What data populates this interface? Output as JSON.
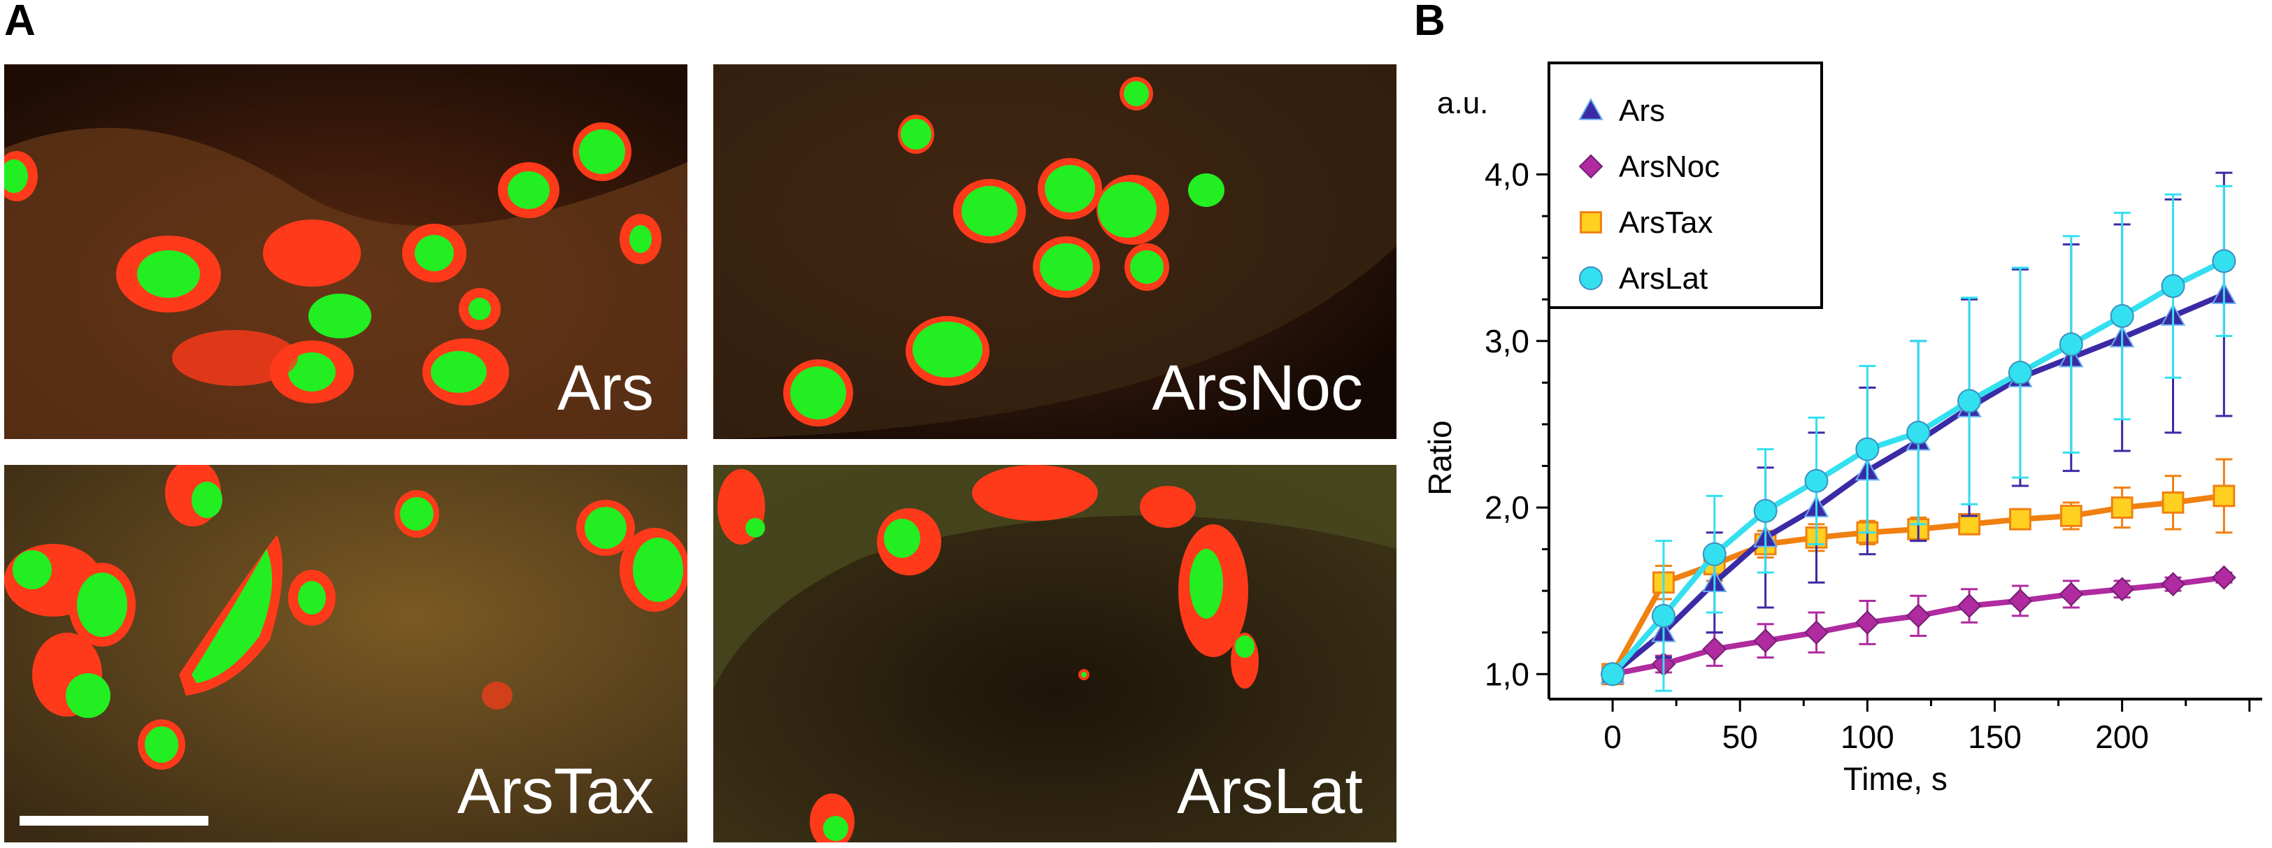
{
  "panels": {
    "a_label": "A",
    "b_label": "B",
    "images": [
      {
        "label": "Ars"
      },
      {
        "label": "ArsNoc"
      },
      {
        "label": "ArsTax"
      },
      {
        "label": "ArsLat"
      }
    ]
  },
  "colors": {
    "Ars": "#3b2aa6",
    "ArsNoc": "#b02aa0",
    "ArsTax": "#f08010",
    "ArsLat": "#33e0f0",
    "green_channel": "#22ee22",
    "red_channel": "#ff3a1a"
  },
  "chart_data": {
    "type": "line",
    "xlabel": "Time, s",
    "ylabel": "Ratio",
    "y_unit": "a.u.",
    "xlim": [
      -25,
      255
    ],
    "ylim": [
      0.85,
      4.25
    ],
    "x_ticks": [
      0,
      50,
      100,
      150,
      200
    ],
    "y_ticks": [
      1.0,
      2.0,
      3.0,
      4.0
    ],
    "y_tick_labels": [
      "1,0",
      "2,0",
      "3,0",
      "4,0"
    ],
    "legend": "top-left",
    "series": [
      {
        "name": "Ars",
        "marker": "triangle",
        "color": "#3b2aa6",
        "x": [
          0,
          20,
          40,
          60,
          80,
          100,
          120,
          140,
          160,
          180,
          200,
          220,
          240
        ],
        "y": [
          1.0,
          1.25,
          1.55,
          1.82,
          2.0,
          2.22,
          2.4,
          2.6,
          2.78,
          2.9,
          3.02,
          3.15,
          3.28
        ],
        "err": [
          0.02,
          0.15,
          0.3,
          0.42,
          0.45,
          0.5,
          0.6,
          0.65,
          0.65,
          0.68,
          0.68,
          0.7,
          0.73
        ]
      },
      {
        "name": "ArsNoc",
        "marker": "diamond",
        "color": "#b02aa0",
        "x": [
          0,
          20,
          40,
          60,
          80,
          100,
          120,
          140,
          160,
          180,
          200,
          220,
          240
        ],
        "y": [
          1.0,
          1.06,
          1.15,
          1.2,
          1.25,
          1.31,
          1.35,
          1.41,
          1.44,
          1.48,
          1.51,
          1.54,
          1.58
        ],
        "err": [
          0.02,
          0.05,
          0.1,
          0.1,
          0.12,
          0.13,
          0.12,
          0.1,
          0.09,
          0.08,
          0.05,
          0.04,
          0.03
        ]
      },
      {
        "name": "ArsTax",
        "marker": "square",
        "color": "#f08010",
        "x": [
          0,
          20,
          40,
          60,
          80,
          100,
          120,
          140,
          160,
          180,
          200,
          220,
          240
        ],
        "y": [
          1.0,
          1.55,
          1.66,
          1.78,
          1.82,
          1.85,
          1.87,
          1.9,
          1.93,
          1.95,
          2.0,
          2.03,
          2.07
        ],
        "err": [
          0.02,
          0.1,
          0.1,
          0.08,
          0.08,
          0.07,
          0.07,
          0.06,
          0.06,
          0.08,
          0.12,
          0.16,
          0.22
        ]
      },
      {
        "name": "ArsLat",
        "marker": "circle",
        "color": "#33e0f0",
        "x": [
          0,
          20,
          40,
          60,
          80,
          100,
          120,
          140,
          160,
          180,
          200,
          220,
          240
        ],
        "y": [
          1.0,
          1.35,
          1.72,
          1.98,
          2.16,
          2.35,
          2.45,
          2.64,
          2.81,
          2.98,
          3.15,
          3.33,
          3.48
        ],
        "err": [
          0.02,
          0.45,
          0.35,
          0.37,
          0.38,
          0.5,
          0.55,
          0.62,
          0.63,
          0.65,
          0.62,
          0.55,
          0.45
        ]
      }
    ]
  }
}
